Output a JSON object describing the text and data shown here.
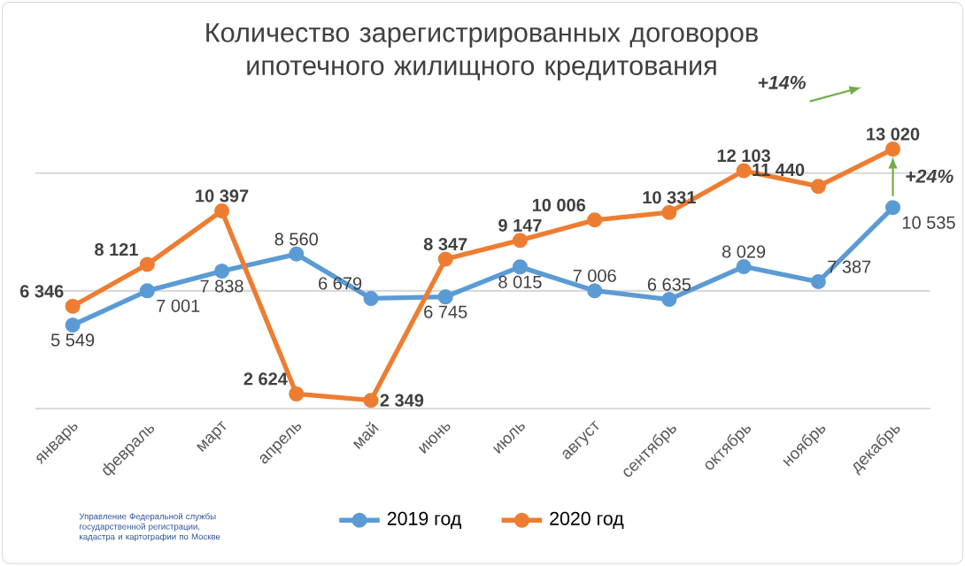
{
  "chart_data": {
    "type": "line",
    "title": "Количество зарегистрированных договоров ипотечного жилищного кредитования",
    "categories": [
      "январь",
      "февраль",
      "март",
      "апрель",
      "май",
      "июнь",
      "июль",
      "август",
      "сентябрь",
      "октябрь",
      "ноябрь",
      "декабрь"
    ],
    "series": [
      {
        "name": "2019 год",
        "color": "#5b9bd5",
        "values": [
          5549,
          7001,
          7838,
          8560,
          6679,
          6745,
          8015,
          7006,
          6635,
          8029,
          7387,
          10535
        ],
        "value_labels": [
          "5 549",
          "7 001",
          "7 838",
          "8 560",
          "6 679",
          "6 745",
          "8 015",
          "7 006",
          "6 635",
          "8 029",
          "7 387",
          "10 535"
        ]
      },
      {
        "name": "2020 год",
        "color": "#ed7d31",
        "values": [
          6346,
          8121,
          10397,
          2624,
          2349,
          8347,
          9147,
          10006,
          10331,
          12103,
          11440,
          13020
        ],
        "value_labels": [
          "6 346",
          "8 121",
          "10 397",
          "2 624",
          "2 349",
          "8 347",
          "9 147",
          "10 006",
          "10 331",
          "12 103",
          "11 440",
          "13 020"
        ]
      }
    ],
    "ref_lines": [
      {
        "axis": "y",
        "value": 7000,
        "color": "#d9d9d9"
      },
      {
        "axis": "y",
        "value": 12000,
        "color": "#d9d9d9"
      }
    ],
    "legend": "bottom",
    "marker": "circle",
    "line_style": "solid",
    "tick_labels": "x",
    "annotations": [
      "+14%",
      {
        "text": "+24%",
        "x": "декабрь",
        "y": 13020
      },
      "Управление Федеральной службы государственной регистрации, кадастра и картографии по Москве"
    ]
  }
}
